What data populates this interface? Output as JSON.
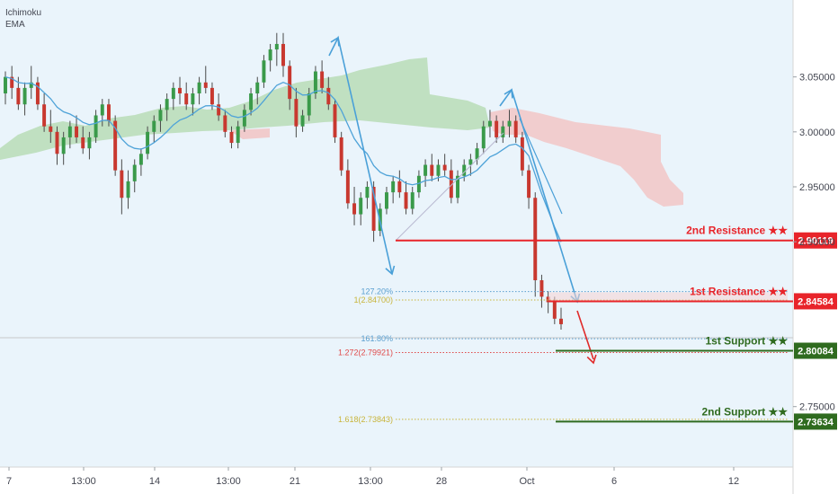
{
  "legend": {
    "items": [
      "Ichimoku",
      "EMA"
    ]
  },
  "colors": {
    "background": "#eaf4fb",
    "axis_bg": "#ffffff",
    "bull": "#3a9a4a",
    "bear": "#c8382f",
    "wick": "#4a4a4a",
    "ema": "#4fa3d8",
    "cloud_bull": "#b8dcb6",
    "cloud_bear": "#f2c6c6",
    "resistance": "#e8242a",
    "support": "#2f6b1f",
    "arrow_blue": "#4aa0d8",
    "arrow_red": "#e02a2a",
    "fib_blue": "#5a9fd0",
    "fib_gold": "#c8b43a",
    "fib_red": "#e04a4a",
    "axis_text": "#434651",
    "crosshair": "#c8c8c8"
  },
  "chart_data": {
    "type": "candlestick",
    "ylim": [
      2.695,
      3.12
    ],
    "x_ticks": [
      "7",
      "13:00",
      "14",
      "13:00",
      "21",
      "13:00",
      "28",
      "Oct",
      "6",
      "12"
    ],
    "y_ticks": [
      "3.05000",
      "3.00000",
      "2.95000",
      "2.90000",
      "2.75000"
    ],
    "levels": [
      {
        "name": "2nd Resistance ★★",
        "price": 2.90119,
        "label": "2.90119",
        "kind": "resistance"
      },
      {
        "name": "1st Resistance ★★",
        "price": 2.84584,
        "label": "2.84584",
        "kind": "resistance"
      },
      {
        "name": "1st Support ★★",
        "price": 2.80084,
        "label": "2.80084",
        "kind": "support"
      },
      {
        "name": "2nd Support ★★",
        "price": 2.73634,
        "label": "2.73634",
        "kind": "support"
      }
    ],
    "fib_labels": [
      {
        "text": "127.20%",
        "price": 2.8547,
        "color_key": "fib_blue"
      },
      {
        "text": "1(2.84700)",
        "price": 2.847,
        "color_key": "fib_gold"
      },
      {
        "text": "161.80%",
        "price": 2.8118,
        "color_key": "fib_blue"
      },
      {
        "text": "1.272(2.79921)",
        "price": 2.79921,
        "color_key": "fib_red"
      },
      {
        "text": "1.618(2.73843)",
        "price": 2.73843,
        "color_key": "fib_gold"
      }
    ],
    "candles": [
      [
        3.035,
        3.055,
        3.025,
        3.05
      ],
      [
        3.05,
        3.06,
        3.03,
        3.04
      ],
      [
        3.04,
        3.05,
        3.02,
        3.025
      ],
      [
        3.025,
        3.045,
        3.015,
        3.04
      ],
      [
        3.04,
        3.06,
        3.03,
        3.045
      ],
      [
        3.045,
        3.05,
        3.02,
        3.025
      ],
      [
        3.025,
        3.035,
        3.0,
        3.005
      ],
      [
        3.005,
        3.02,
        2.99,
        3.0
      ],
      [
        3.0,
        3.005,
        2.97,
        2.98
      ],
      [
        2.98,
        3.0,
        2.97,
        2.995
      ],
      [
        2.995,
        3.01,
        2.985,
        3.005
      ],
      [
        3.005,
        3.015,
        2.99,
        2.995
      ],
      [
        2.995,
        3.005,
        2.98,
        2.985
      ],
      [
        2.985,
        3.0,
        2.975,
        2.995
      ],
      [
        2.995,
        3.02,
        2.99,
        3.015
      ],
      [
        3.015,
        3.03,
        3.005,
        3.025
      ],
      [
        3.025,
        3.03,
        3.005,
        3.01
      ],
      [
        3.01,
        3.015,
        2.96,
        2.965
      ],
      [
        2.965,
        2.975,
        2.925,
        2.94
      ],
      [
        2.94,
        2.965,
        2.93,
        2.955
      ],
      [
        2.955,
        2.975,
        2.945,
        2.97
      ],
      [
        2.97,
        2.985,
        2.96,
        2.98
      ],
      [
        2.98,
        3.005,
        2.975,
        3.0
      ],
      [
        3.0,
        3.015,
        2.99,
        3.01
      ],
      [
        3.01,
        3.025,
        3.0,
        3.02
      ],
      [
        3.02,
        3.035,
        3.01,
        3.03
      ],
      [
        3.03,
        3.045,
        3.02,
        3.04
      ],
      [
        3.04,
        3.05,
        3.025,
        3.035
      ],
      [
        3.035,
        3.045,
        3.02,
        3.025
      ],
      [
        3.025,
        3.04,
        3.015,
        3.035
      ],
      [
        3.035,
        3.05,
        3.025,
        3.045
      ],
      [
        3.045,
        3.06,
        3.035,
        3.04
      ],
      [
        3.04,
        3.045,
        3.02,
        3.025
      ],
      [
        3.025,
        3.035,
        3.01,
        3.015
      ],
      [
        3.015,
        3.02,
        2.995,
        3.0
      ],
      [
        3.0,
        3.005,
        2.985,
        2.99
      ],
      [
        2.99,
        3.01,
        2.985,
        3.005
      ],
      [
        3.005,
        3.025,
        3.0,
        3.02
      ],
      [
        3.02,
        3.04,
        3.015,
        3.035
      ],
      [
        3.035,
        3.05,
        3.025,
        3.045
      ],
      [
        3.045,
        3.07,
        3.04,
        3.065
      ],
      [
        3.065,
        3.08,
        3.055,
        3.075
      ],
      [
        3.075,
        3.09,
        3.06,
        3.08
      ],
      [
        3.08,
        3.09,
        3.05,
        3.06
      ],
      [
        3.06,
        3.065,
        3.02,
        3.03
      ],
      [
        3.03,
        3.04,
        2.995,
        3.005
      ],
      [
        3.005,
        3.02,
        3.0,
        3.015
      ],
      [
        3.015,
        3.04,
        3.01,
        3.035
      ],
      [
        3.035,
        3.06,
        3.03,
        3.055
      ],
      [
        3.055,
        3.065,
        3.035,
        3.04
      ],
      [
        3.04,
        3.05,
        3.02,
        3.025
      ],
      [
        3.025,
        3.03,
        2.99,
        2.995
      ],
      [
        2.995,
        3.0,
        2.96,
        2.965
      ],
      [
        2.965,
        2.975,
        2.93,
        2.935
      ],
      [
        2.935,
        2.95,
        2.915,
        2.925
      ],
      [
        2.925,
        2.945,
        2.915,
        2.94
      ],
      [
        2.94,
        2.955,
        2.93,
        2.95
      ],
      [
        2.95,
        2.955,
        2.9,
        2.91
      ],
      [
        2.91,
        2.935,
        2.905,
        2.93
      ],
      [
        2.93,
        2.95,
        2.925,
        2.945
      ],
      [
        2.945,
        2.96,
        2.935,
        2.955
      ],
      [
        2.955,
        2.965,
        2.94,
        2.945
      ],
      [
        2.945,
        2.955,
        2.925,
        2.93
      ],
      [
        2.93,
        2.95,
        2.925,
        2.945
      ],
      [
        2.945,
        2.965,
        2.94,
        2.96
      ],
      [
        2.96,
        2.975,
        2.95,
        2.97
      ],
      [
        2.97,
        2.98,
        2.955,
        2.96
      ],
      [
        2.96,
        2.975,
        2.955,
        2.97
      ],
      [
        2.97,
        2.98,
        2.96,
        2.965
      ],
      [
        2.965,
        2.975,
        2.935,
        2.94
      ],
      [
        2.94,
        2.965,
        2.935,
        2.96
      ],
      [
        2.96,
        2.975,
        2.955,
        2.97
      ],
      [
        2.97,
        2.98,
        2.96,
        2.975
      ],
      [
        2.975,
        2.99,
        2.97,
        2.985
      ],
      [
        2.985,
        3.01,
        2.98,
        3.005
      ],
      [
        3.005,
        3.02,
        2.995,
        3.01
      ],
      [
        3.01,
        3.015,
        2.99,
        2.995
      ],
      [
        2.995,
        3.01,
        2.99,
        3.005
      ],
      [
        3.005,
        3.02,
        2.995,
        3.01
      ],
      [
        3.01,
        3.015,
        2.99,
        2.995
      ],
      [
        2.995,
        3.0,
        2.96,
        2.965
      ],
      [
        2.965,
        2.97,
        2.93,
        2.94
      ],
      [
        2.94,
        2.945,
        2.85,
        2.865
      ],
      [
        2.865,
        2.87,
        2.84,
        2.85
      ],
      [
        2.85,
        2.855,
        2.835,
        2.845
      ],
      [
        2.845,
        2.85,
        2.825,
        2.83
      ],
      [
        2.83,
        2.84,
        2.82,
        2.825
      ]
    ]
  }
}
